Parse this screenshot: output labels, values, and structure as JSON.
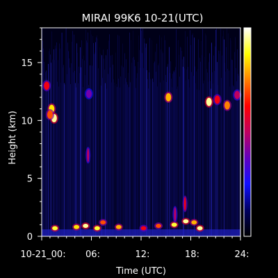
{
  "chart_data": {
    "type": "heatmap",
    "title": "MIRAI 99K6 10-21(UTC)",
    "xlabel": "Time (UTC)",
    "ylabel": "Height (km)",
    "xlim": [
      0,
      24
    ],
    "ylim": [
      0,
      18
    ],
    "x_ticks": [
      {
        "value": 0,
        "label": "10-21_00:"
      },
      {
        "value": 6,
        "label": "06:"
      },
      {
        "value": 12,
        "label": "12:"
      },
      {
        "value": 18,
        "label": "18:"
      },
      {
        "value": 24,
        "label": "24:"
      }
    ],
    "y_ticks": [
      {
        "value": 0,
        "label": "0"
      },
      {
        "value": 5,
        "label": "5"
      },
      {
        "value": 10,
        "label": "10"
      },
      {
        "value": 15,
        "label": "15"
      }
    ],
    "colorbar": {
      "orientation": "vertical",
      "placement": "right",
      "colors": [
        "#000000",
        "#000060",
        "#1010ff",
        "#6000c0",
        "#c00060",
        "#ff0000",
        "#ff8000",
        "#ffff00",
        "#ffffff"
      ]
    },
    "features": [
      {
        "kind": "cirrus",
        "t": 1.2,
        "h": 11.0,
        "level": 0.85
      },
      {
        "kind": "cirrus",
        "t": 1.5,
        "h": 10.2,
        "level": 0.95
      },
      {
        "kind": "cirrus",
        "t": 0.6,
        "h": 13.0,
        "level": 0.6
      },
      {
        "kind": "cirrus",
        "t": 1.0,
        "h": 10.5,
        "level": 0.7
      },
      {
        "kind": "cirrus",
        "t": 5.7,
        "h": 12.3,
        "level": 0.4
      },
      {
        "kind": "cirrus",
        "t": 15.3,
        "h": 12.0,
        "level": 0.8
      },
      {
        "kind": "cirrus",
        "t": 20.2,
        "h": 11.6,
        "level": 0.95
      },
      {
        "kind": "cirrus",
        "t": 21.2,
        "h": 11.8,
        "level": 0.6
      },
      {
        "kind": "cirrus",
        "t": 22.4,
        "h": 11.3,
        "level": 0.75
      },
      {
        "kind": "cirrus",
        "t": 23.6,
        "h": 12.2,
        "level": 0.5
      },
      {
        "kind": "low",
        "t": 1.6,
        "h": 0.7,
        "level": 0.9
      },
      {
        "kind": "low",
        "t": 4.2,
        "h": 0.8,
        "level": 0.85
      },
      {
        "kind": "low",
        "t": 5.3,
        "h": 0.9,
        "level": 0.95
      },
      {
        "kind": "low",
        "t": 6.7,
        "h": 0.7,
        "level": 0.9
      },
      {
        "kind": "low",
        "t": 7.4,
        "h": 1.2,
        "level": 0.7
      },
      {
        "kind": "low",
        "t": 9.3,
        "h": 0.8,
        "level": 0.8
      },
      {
        "kind": "low",
        "t": 12.3,
        "h": 0.7,
        "level": 0.6
      },
      {
        "kind": "low",
        "t": 14.1,
        "h": 0.9,
        "level": 0.7
      },
      {
        "kind": "low",
        "t": 16.0,
        "h": 1.0,
        "level": 0.9
      },
      {
        "kind": "low",
        "t": 17.4,
        "h": 1.3,
        "level": 0.95
      },
      {
        "kind": "low",
        "t": 18.4,
        "h": 1.2,
        "level": 0.8
      },
      {
        "kind": "low",
        "t": 19.1,
        "h": 0.7,
        "level": 0.95
      },
      {
        "kind": "tower",
        "t": 5.6,
        "h": 7.0,
        "level": 0.5
      },
      {
        "kind": "tower",
        "t": 17.3,
        "h": 2.8,
        "level": 0.6
      },
      {
        "kind": "tower",
        "t": 16.1,
        "h": 1.9,
        "level": 0.5
      }
    ]
  }
}
